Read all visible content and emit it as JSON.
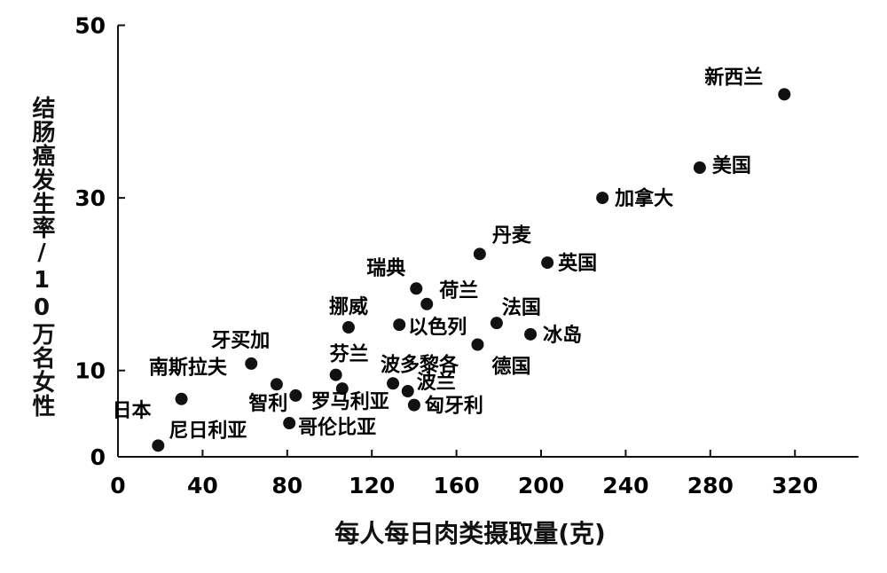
{
  "chart_data": {
    "type": "scatter",
    "xlabel": "每人每日肉类摄取量(克)",
    "ylabel": "结肠癌发生率/10万名女性",
    "xlim": [
      0,
      350
    ],
    "ylim": [
      0,
      50
    ],
    "xticks": [
      "0",
      "40",
      "80",
      "120",
      "160",
      "200",
      "240",
      "280",
      "320"
    ],
    "yticks": [
      "0",
      "10",
      "30",
      "50"
    ],
    "grid": false,
    "points": [
      {
        "label": "新西兰",
        "x": 315,
        "y": 42
      },
      {
        "label": "美国",
        "x": 275,
        "y": 33.5
      },
      {
        "label": "加拿大",
        "x": 229,
        "y": 30
      },
      {
        "label": "丹麦",
        "x": 171,
        "y": 23.5
      },
      {
        "label": "英国",
        "x": 203,
        "y": 22.5
      },
      {
        "label": "瑞典",
        "x": 141,
        "y": 19.5
      },
      {
        "label": "荷兰",
        "x": 146,
        "y": 17.7
      },
      {
        "label": "挪威",
        "x": 109,
        "y": 15
      },
      {
        "label": "以色列",
        "x": 133,
        "y": 15.3
      },
      {
        "label": "法国",
        "x": 179,
        "y": 15.5
      },
      {
        "label": "冰岛",
        "x": 195,
        "y": 14.2
      },
      {
        "label": "德国",
        "x": 170,
        "y": 13
      },
      {
        "label": "牙买加",
        "x": 63,
        "y": 10.8
      },
      {
        "label": "芬兰",
        "x": 103,
        "y": 9.5
      },
      {
        "label": "波多黎各",
        "x": 130,
        "y": 8.5
      },
      {
        "label": "波兰",
        "x": 137,
        "y": 7.6
      },
      {
        "label": "南斯拉夫",
        "x": 75,
        "y": 8.4
      },
      {
        "label": "罗马利亚",
        "x": 106,
        "y": 7.9
      },
      {
        "label": "智利",
        "x": 84,
        "y": 7.1
      },
      {
        "label": "匈牙利",
        "x": 140,
        "y": 6
      },
      {
        "label": "日本",
        "x": 30,
        "y": 6.7
      },
      {
        "label": "哥伦比亚",
        "x": 81,
        "y": 3.9
      },
      {
        "label": "尼日利亚",
        "x": 19,
        "y": 1.3
      }
    ]
  }
}
